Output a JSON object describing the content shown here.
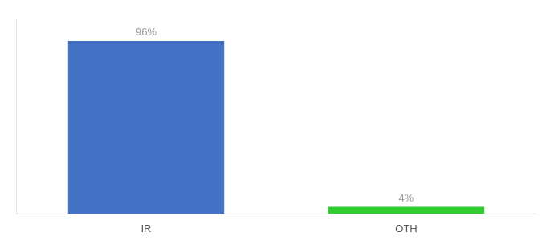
{
  "chart_data": {
    "type": "bar",
    "categories": [
      "IR",
      "OTH"
    ],
    "values": [
      96,
      4
    ],
    "value_labels": [
      "96%",
      "4%"
    ],
    "colors": [
      "#4472c4",
      "#33cc33"
    ],
    "ylim": [
      0,
      108
    ],
    "grid": false,
    "data_labels": true,
    "tick_labels": "x"
  }
}
